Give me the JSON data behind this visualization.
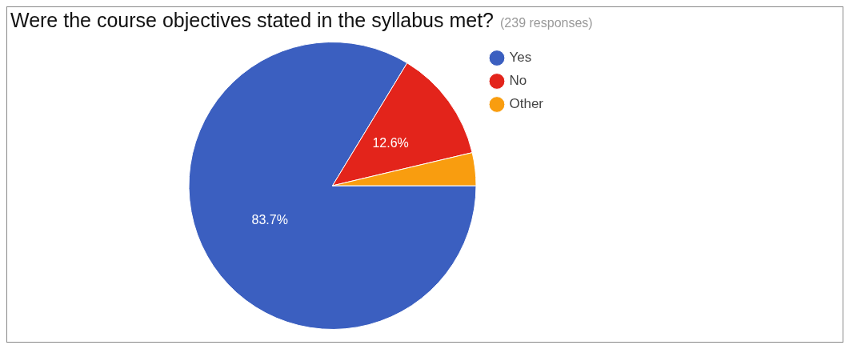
{
  "chart_data": {
    "type": "pie",
    "title": "Were the course objectives stated in the syllabus met?",
    "subtitle": "(239 responses)",
    "categories": [
      "Yes",
      "No",
      "Other"
    ],
    "values": [
      83.7,
      12.6,
      3.7
    ],
    "colors": [
      "#3b5fc0",
      "#e3241b",
      "#f99d0f"
    ],
    "value_labels": [
      "83.7%",
      "12.6%",
      null
    ],
    "legend": "top right"
  }
}
